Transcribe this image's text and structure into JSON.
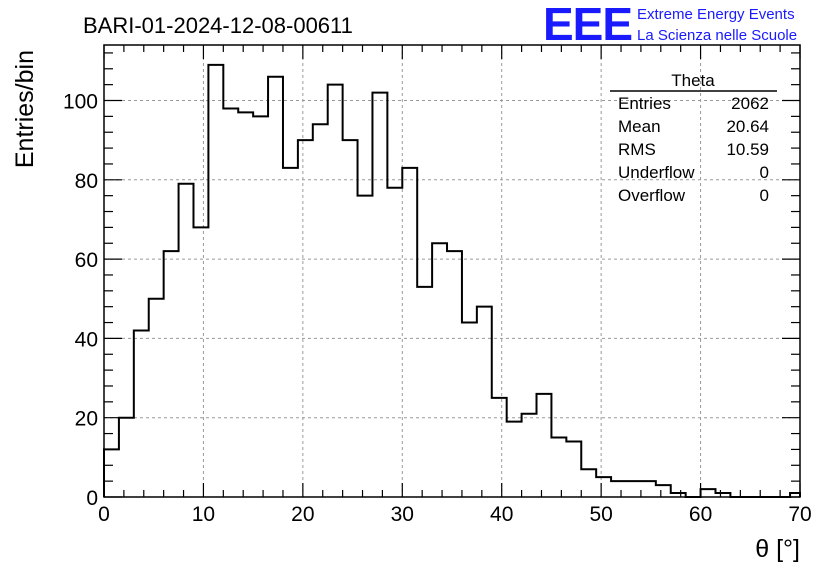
{
  "title": "BARI-01-2024-12-08-00611",
  "logo": {
    "mark": "EEE",
    "line1": "Extreme Energy Events",
    "line2": "La Scienza nelle Scuole",
    "color": "#1a1aff"
  },
  "stats_box": {
    "name": "Theta",
    "rows": [
      {
        "label": "Entries",
        "value": "2062"
      },
      {
        "label": "Mean",
        "value": "20.64"
      },
      {
        "label": "RMS",
        "value": "10.59"
      },
      {
        "label": "Underflow",
        "value": "0"
      },
      {
        "label": "Overflow",
        "value": "0"
      }
    ]
  },
  "chart_data": {
    "type": "histogram",
    "title": "BARI-01-2024-12-08-00611",
    "xlabel": "θ [°]",
    "ylabel": "Entries/bin",
    "xlim": [
      0,
      70
    ],
    "ylim": [
      0,
      114
    ],
    "xticks": [
      0,
      10,
      20,
      30,
      40,
      50,
      60,
      70
    ],
    "yticks": [
      0,
      20,
      40,
      60,
      80,
      100
    ],
    "grid": true,
    "bin_width": 1.5,
    "bin_edges_start": 0,
    "values": [
      12,
      20,
      42,
      50,
      62,
      79,
      68,
      109,
      98,
      97,
      96,
      106,
      83,
      90,
      94,
      104,
      90,
      76,
      102,
      78,
      83,
      53,
      64,
      62,
      44,
      48,
      25,
      19,
      21,
      26,
      15,
      14,
      7,
      5,
      4,
      4,
      4,
      3,
      1,
      0,
      2,
      1,
      0,
      0,
      0,
      0,
      1
    ]
  }
}
